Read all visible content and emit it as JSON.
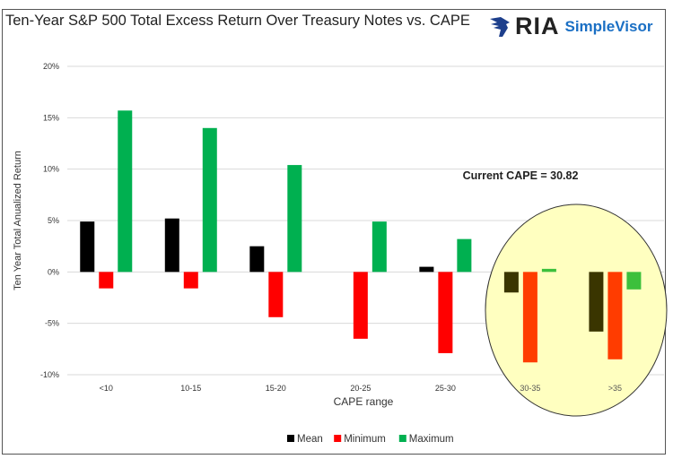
{
  "brand": {
    "name": "RIA",
    "product": "SimpleVisor"
  },
  "chart_data": {
    "type": "bar",
    "title": "Ten-Year S&P 500 Total Excess Return Over Treasury Notes vs. CAPE",
    "xlabel": "CAPE range",
    "ylabel": "Ten Year Total Anualized Return",
    "categories": [
      "<10",
      "10-15",
      "15-20",
      "20-25",
      "25-30",
      "30-35",
      ">35"
    ],
    "series": [
      {
        "name": "Mean",
        "color": "#000000",
        "values": [
          4.9,
          5.2,
          2.5,
          0.0,
          0.5,
          -2.0,
          -5.8
        ]
      },
      {
        "name": "Minimum",
        "color": "#ff0000",
        "values": [
          -1.6,
          -1.6,
          -4.4,
          -6.5,
          -7.9,
          -8.8,
          -8.5
        ]
      },
      {
        "name": "Maximum",
        "color": "#00b050",
        "values": [
          15.7,
          14.0,
          10.4,
          4.9,
          3.2,
          0.3,
          -1.7
        ]
      }
    ],
    "ylim": [
      -10,
      20
    ],
    "yticks": [
      20,
      15,
      10,
      5,
      0,
      -5,
      -10
    ],
    "ytick_labels": [
      "20%",
      "15%",
      "10%",
      "5%",
      "0%",
      "-5%",
      "-10%"
    ],
    "grid": true,
    "legend": "bottom-center",
    "annotation": "Current CAPE = 30.82",
    "highlight_categories": [
      "30-35",
      ">35"
    ],
    "highlight_color": "#ffffc0"
  }
}
